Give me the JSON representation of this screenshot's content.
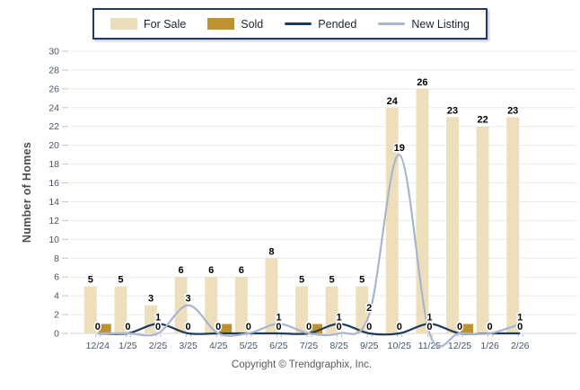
{
  "legend": {
    "items": [
      {
        "label": "For Sale",
        "type": "swatch",
        "color": "#eaddb9"
      },
      {
        "label": "Sold",
        "type": "swatch",
        "color": "#bd9332"
      },
      {
        "label": "Pended",
        "type": "line",
        "color": "#1b3a5c"
      },
      {
        "label": "New Listing",
        "type": "line",
        "color": "#a9b6c9"
      }
    ]
  },
  "footer": {
    "copyright": "Copyright © Trendgraphix, Inc."
  },
  "chart_data": {
    "type": "bar",
    "title": "",
    "xlabel": "",
    "ylabel": "Number of Homes",
    "ylim": [
      0,
      30
    ],
    "ytick_step": 2,
    "grid": "horizontal",
    "legend_position": "top",
    "categories": [
      "12/24",
      "1/25",
      "2/25",
      "3/25",
      "4/25",
      "5/25",
      "6/25",
      "7/25",
      "8/25",
      "9/25",
      "10/25",
      "11/25",
      "12/25",
      "1/26",
      "2/26"
    ],
    "series": [
      {
        "name": "For Sale",
        "type": "bar",
        "color": "#eddfbc",
        "values": [
          5,
          5,
          3,
          6,
          6,
          6,
          8,
          5,
          5,
          5,
          24,
          26,
          23,
          22,
          23
        ]
      },
      {
        "name": "Sold",
        "type": "bar",
        "color": "#bd9332",
        "values": [
          1,
          0,
          0,
          0,
          1,
          0,
          0,
          1,
          0,
          0,
          0,
          0,
          1,
          0,
          0
        ]
      },
      {
        "name": "Pended",
        "type": "line",
        "color": "#1b3a5c",
        "values": [
          0,
          0,
          1,
          0,
          0,
          0,
          0,
          0,
          1,
          0,
          0,
          1,
          0,
          0,
          0
        ]
      },
      {
        "name": "New Listing",
        "type": "line",
        "color": "#a9b6c9",
        "values": [
          0,
          0,
          0,
          3,
          0,
          0,
          1,
          0,
          0,
          2,
          19,
          0,
          0,
          0,
          1
        ]
      }
    ],
    "colors": {
      "gridline": "#ebebeb",
      "axis_line": "#d6d6d6",
      "tick_text": "#44546a",
      "value_label": "#000000"
    }
  }
}
